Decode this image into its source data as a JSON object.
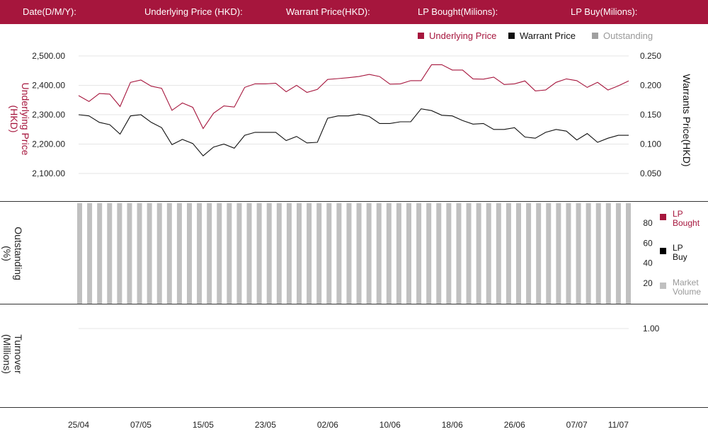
{
  "header": {
    "date_label": "Date(D/M/Y):",
    "underlying_label": "Underlying Price (HKD):",
    "warrant_label": "Warrant  Price(HKD):",
    "lp_bought_label": "LP Bought(Milions):",
    "lp_buy_label": "LP Buy(Milions):"
  },
  "colors": {
    "brand": "#a6163d",
    "underlying": "#a6163d",
    "warrant": "#111111",
    "outstanding": "#a0a0a0",
    "bars": "#c0c0c0",
    "lp_buy": "#000000"
  },
  "legend_top": {
    "underlying": "Underlying Price",
    "warrant": "Warrant  Price",
    "outstanding": "Outstanding"
  },
  "legend_mid": {
    "lp_bought_line1": "LP",
    "lp_bought_line2": "Bought",
    "lp_buy_line1": "LP",
    "lp_buy_line2": "Buy",
    "market_volume_line1": "Market",
    "market_volume_line2": "Volume"
  },
  "axis_labels": {
    "underlying_line1": "Underlying Price",
    "underlying_line2": "(HKD)",
    "warrant": "Warrants  Price(HKD)",
    "outstanding_line1": "Outstanding",
    "outstanding_line2": "(%)",
    "turnover_line1": "Turnover",
    "turnover_line2": "(Millions)"
  },
  "chart_data": [
    {
      "type": "line",
      "ylim_left": [
        2100,
        2500
      ],
      "left_ticks": [
        "2,500.00",
        "2,400.00",
        "2,300.00",
        "2,200.00",
        "2,100.00"
      ],
      "left_tick_values": [
        2500,
        2400,
        2300,
        2200,
        2100
      ],
      "ylim_right": [
        0.05,
        0.25
      ],
      "right_ticks": [
        "0.250",
        "0.200",
        "0.150",
        "0.100",
        "0.050"
      ],
      "right_tick_values": [
        0.25,
        0.2,
        0.15,
        0.1,
        0.05
      ],
      "grid": true,
      "legend_position": "top-right",
      "x_ticks": [
        "25/04",
        "07/05",
        "15/05",
        "23/05",
        "02/06",
        "10/06",
        "18/06",
        "26/06",
        "07/07",
        "11/07"
      ],
      "x_tick_indices": [
        0,
        6,
        12,
        18,
        24,
        30,
        36,
        42,
        48,
        52
      ],
      "series": [
        {
          "name": "Underlying Price",
          "axis": "left",
          "values": [
            2365,
            2345,
            2372,
            2370,
            2328,
            2410,
            2418,
            2397,
            2390,
            2315,
            2340,
            2325,
            2253,
            2305,
            2330,
            2326,
            2393,
            2405,
            2405,
            2407,
            2378,
            2400,
            2376,
            2386,
            2420,
            2423,
            2426,
            2430,
            2437,
            2430,
            2404,
            2405,
            2416,
            2416,
            2470,
            2470,
            2452,
            2452,
            2422,
            2421,
            2428,
            2403,
            2405,
            2415,
            2381,
            2384,
            2410,
            2422,
            2416,
            2393,
            2410,
            2384,
            2398,
            2415
          ]
        },
        {
          "name": "Warrant  Price",
          "axis": "right",
          "values": [
            0.15,
            0.148,
            0.137,
            0.133,
            0.117,
            0.148,
            0.15,
            0.137,
            0.128,
            0.099,
            0.108,
            0.101,
            0.08,
            0.095,
            0.1,
            0.093,
            0.115,
            0.12,
            0.12,
            0.12,
            0.106,
            0.113,
            0.102,
            0.103,
            0.144,
            0.148,
            0.148,
            0.151,
            0.147,
            0.135,
            0.135,
            0.138,
            0.138,
            0.16,
            0.157,
            0.149,
            0.148,
            0.14,
            0.134,
            0.135,
            0.125,
            0.125,
            0.128,
            0.112,
            0.11,
            0.12,
            0.125,
            0.122,
            0.107,
            0.118,
            0.103,
            0.11,
            0.115,
            0.115
          ]
        },
        {
          "name": "Outstanding",
          "axis": "right",
          "values": []
        }
      ]
    },
    {
      "type": "bar",
      "series_name": "Market Volume",
      "ylim": [
        0,
        100
      ],
      "y_ticks": [
        "80",
        "60",
        "40",
        "20"
      ],
      "y_tick_values": [
        80,
        60,
        40,
        20
      ],
      "values": [
        100,
        100,
        100,
        100,
        100,
        100,
        100,
        100,
        100,
        100,
        100,
        100,
        100,
        100,
        100,
        100,
        100,
        100,
        100,
        100,
        100,
        100,
        100,
        100,
        100,
        100,
        100,
        100,
        100,
        100,
        100,
        100,
        100,
        100,
        100,
        100,
        100,
        100,
        100,
        100,
        100,
        100,
        100,
        100,
        100,
        100,
        100,
        100,
        100,
        100,
        100,
        100,
        100,
        100,
        100,
        100
      ]
    },
    {
      "type": "line",
      "ylim": [
        0,
        1.5
      ],
      "y_ticks": [
        "1.00"
      ],
      "y_tick_values": [
        1.0
      ],
      "grid": true,
      "series": []
    }
  ]
}
